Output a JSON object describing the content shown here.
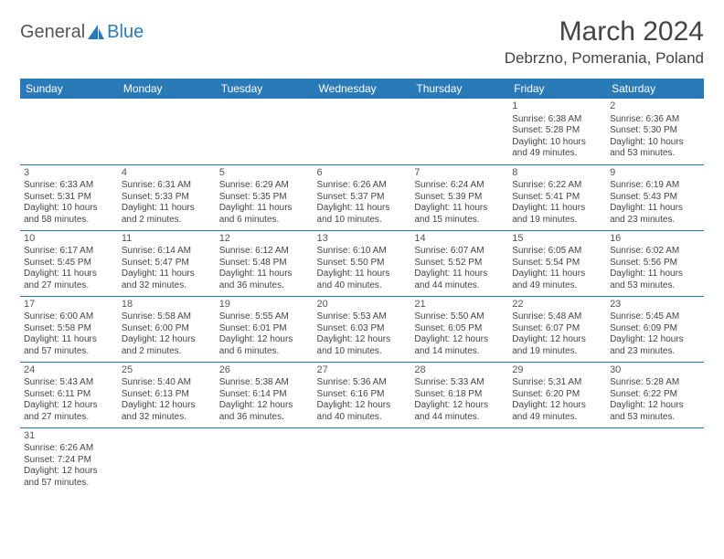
{
  "logo": {
    "text_a": "General",
    "text_b": "Blue"
  },
  "title": "March 2024",
  "location": "Debrzno, Pomerania, Poland",
  "colors": {
    "header_bg": "#2a7ab8",
    "header_fg": "#ffffff",
    "text": "#444444",
    "rule": "#2a7ab8"
  },
  "dayHeaders": [
    "Sunday",
    "Monday",
    "Tuesday",
    "Wednesday",
    "Thursday",
    "Friday",
    "Saturday"
  ],
  "weeks": [
    [
      null,
      null,
      null,
      null,
      null,
      {
        "n": "1",
        "sr": "Sunrise: 6:38 AM",
        "ss": "Sunset: 5:28 PM",
        "d1": "Daylight: 10 hours",
        "d2": "and 49 minutes."
      },
      {
        "n": "2",
        "sr": "Sunrise: 6:36 AM",
        "ss": "Sunset: 5:30 PM",
        "d1": "Daylight: 10 hours",
        "d2": "and 53 minutes."
      }
    ],
    [
      {
        "n": "3",
        "sr": "Sunrise: 6:33 AM",
        "ss": "Sunset: 5:31 PM",
        "d1": "Daylight: 10 hours",
        "d2": "and 58 minutes."
      },
      {
        "n": "4",
        "sr": "Sunrise: 6:31 AM",
        "ss": "Sunset: 5:33 PM",
        "d1": "Daylight: 11 hours",
        "d2": "and 2 minutes."
      },
      {
        "n": "5",
        "sr": "Sunrise: 6:29 AM",
        "ss": "Sunset: 5:35 PM",
        "d1": "Daylight: 11 hours",
        "d2": "and 6 minutes."
      },
      {
        "n": "6",
        "sr": "Sunrise: 6:26 AM",
        "ss": "Sunset: 5:37 PM",
        "d1": "Daylight: 11 hours",
        "d2": "and 10 minutes."
      },
      {
        "n": "7",
        "sr": "Sunrise: 6:24 AM",
        "ss": "Sunset: 5:39 PM",
        "d1": "Daylight: 11 hours",
        "d2": "and 15 minutes."
      },
      {
        "n": "8",
        "sr": "Sunrise: 6:22 AM",
        "ss": "Sunset: 5:41 PM",
        "d1": "Daylight: 11 hours",
        "d2": "and 19 minutes."
      },
      {
        "n": "9",
        "sr": "Sunrise: 6:19 AM",
        "ss": "Sunset: 5:43 PM",
        "d1": "Daylight: 11 hours",
        "d2": "and 23 minutes."
      }
    ],
    [
      {
        "n": "10",
        "sr": "Sunrise: 6:17 AM",
        "ss": "Sunset: 5:45 PM",
        "d1": "Daylight: 11 hours",
        "d2": "and 27 minutes."
      },
      {
        "n": "11",
        "sr": "Sunrise: 6:14 AM",
        "ss": "Sunset: 5:47 PM",
        "d1": "Daylight: 11 hours",
        "d2": "and 32 minutes."
      },
      {
        "n": "12",
        "sr": "Sunrise: 6:12 AM",
        "ss": "Sunset: 5:48 PM",
        "d1": "Daylight: 11 hours",
        "d2": "and 36 minutes."
      },
      {
        "n": "13",
        "sr": "Sunrise: 6:10 AM",
        "ss": "Sunset: 5:50 PM",
        "d1": "Daylight: 11 hours",
        "d2": "and 40 minutes."
      },
      {
        "n": "14",
        "sr": "Sunrise: 6:07 AM",
        "ss": "Sunset: 5:52 PM",
        "d1": "Daylight: 11 hours",
        "d2": "and 44 minutes."
      },
      {
        "n": "15",
        "sr": "Sunrise: 6:05 AM",
        "ss": "Sunset: 5:54 PM",
        "d1": "Daylight: 11 hours",
        "d2": "and 49 minutes."
      },
      {
        "n": "16",
        "sr": "Sunrise: 6:02 AM",
        "ss": "Sunset: 5:56 PM",
        "d1": "Daylight: 11 hours",
        "d2": "and 53 minutes."
      }
    ],
    [
      {
        "n": "17",
        "sr": "Sunrise: 6:00 AM",
        "ss": "Sunset: 5:58 PM",
        "d1": "Daylight: 11 hours",
        "d2": "and 57 minutes."
      },
      {
        "n": "18",
        "sr": "Sunrise: 5:58 AM",
        "ss": "Sunset: 6:00 PM",
        "d1": "Daylight: 12 hours",
        "d2": "and 2 minutes."
      },
      {
        "n": "19",
        "sr": "Sunrise: 5:55 AM",
        "ss": "Sunset: 6:01 PM",
        "d1": "Daylight: 12 hours",
        "d2": "and 6 minutes."
      },
      {
        "n": "20",
        "sr": "Sunrise: 5:53 AM",
        "ss": "Sunset: 6:03 PM",
        "d1": "Daylight: 12 hours",
        "d2": "and 10 minutes."
      },
      {
        "n": "21",
        "sr": "Sunrise: 5:50 AM",
        "ss": "Sunset: 6:05 PM",
        "d1": "Daylight: 12 hours",
        "d2": "and 14 minutes."
      },
      {
        "n": "22",
        "sr": "Sunrise: 5:48 AM",
        "ss": "Sunset: 6:07 PM",
        "d1": "Daylight: 12 hours",
        "d2": "and 19 minutes."
      },
      {
        "n": "23",
        "sr": "Sunrise: 5:45 AM",
        "ss": "Sunset: 6:09 PM",
        "d1": "Daylight: 12 hours",
        "d2": "and 23 minutes."
      }
    ],
    [
      {
        "n": "24",
        "sr": "Sunrise: 5:43 AM",
        "ss": "Sunset: 6:11 PM",
        "d1": "Daylight: 12 hours",
        "d2": "and 27 minutes."
      },
      {
        "n": "25",
        "sr": "Sunrise: 5:40 AM",
        "ss": "Sunset: 6:13 PM",
        "d1": "Daylight: 12 hours",
        "d2": "and 32 minutes."
      },
      {
        "n": "26",
        "sr": "Sunrise: 5:38 AM",
        "ss": "Sunset: 6:14 PM",
        "d1": "Daylight: 12 hours",
        "d2": "and 36 minutes."
      },
      {
        "n": "27",
        "sr": "Sunrise: 5:36 AM",
        "ss": "Sunset: 6:16 PM",
        "d1": "Daylight: 12 hours",
        "d2": "and 40 minutes."
      },
      {
        "n": "28",
        "sr": "Sunrise: 5:33 AM",
        "ss": "Sunset: 6:18 PM",
        "d1": "Daylight: 12 hours",
        "d2": "and 44 minutes."
      },
      {
        "n": "29",
        "sr": "Sunrise: 5:31 AM",
        "ss": "Sunset: 6:20 PM",
        "d1": "Daylight: 12 hours",
        "d2": "and 49 minutes."
      },
      {
        "n": "30",
        "sr": "Sunrise: 5:28 AM",
        "ss": "Sunset: 6:22 PM",
        "d1": "Daylight: 12 hours",
        "d2": "and 53 minutes."
      }
    ],
    [
      {
        "n": "31",
        "sr": "Sunrise: 6:26 AM",
        "ss": "Sunset: 7:24 PM",
        "d1": "Daylight: 12 hours",
        "d2": "and 57 minutes."
      },
      null,
      null,
      null,
      null,
      null,
      null
    ]
  ]
}
